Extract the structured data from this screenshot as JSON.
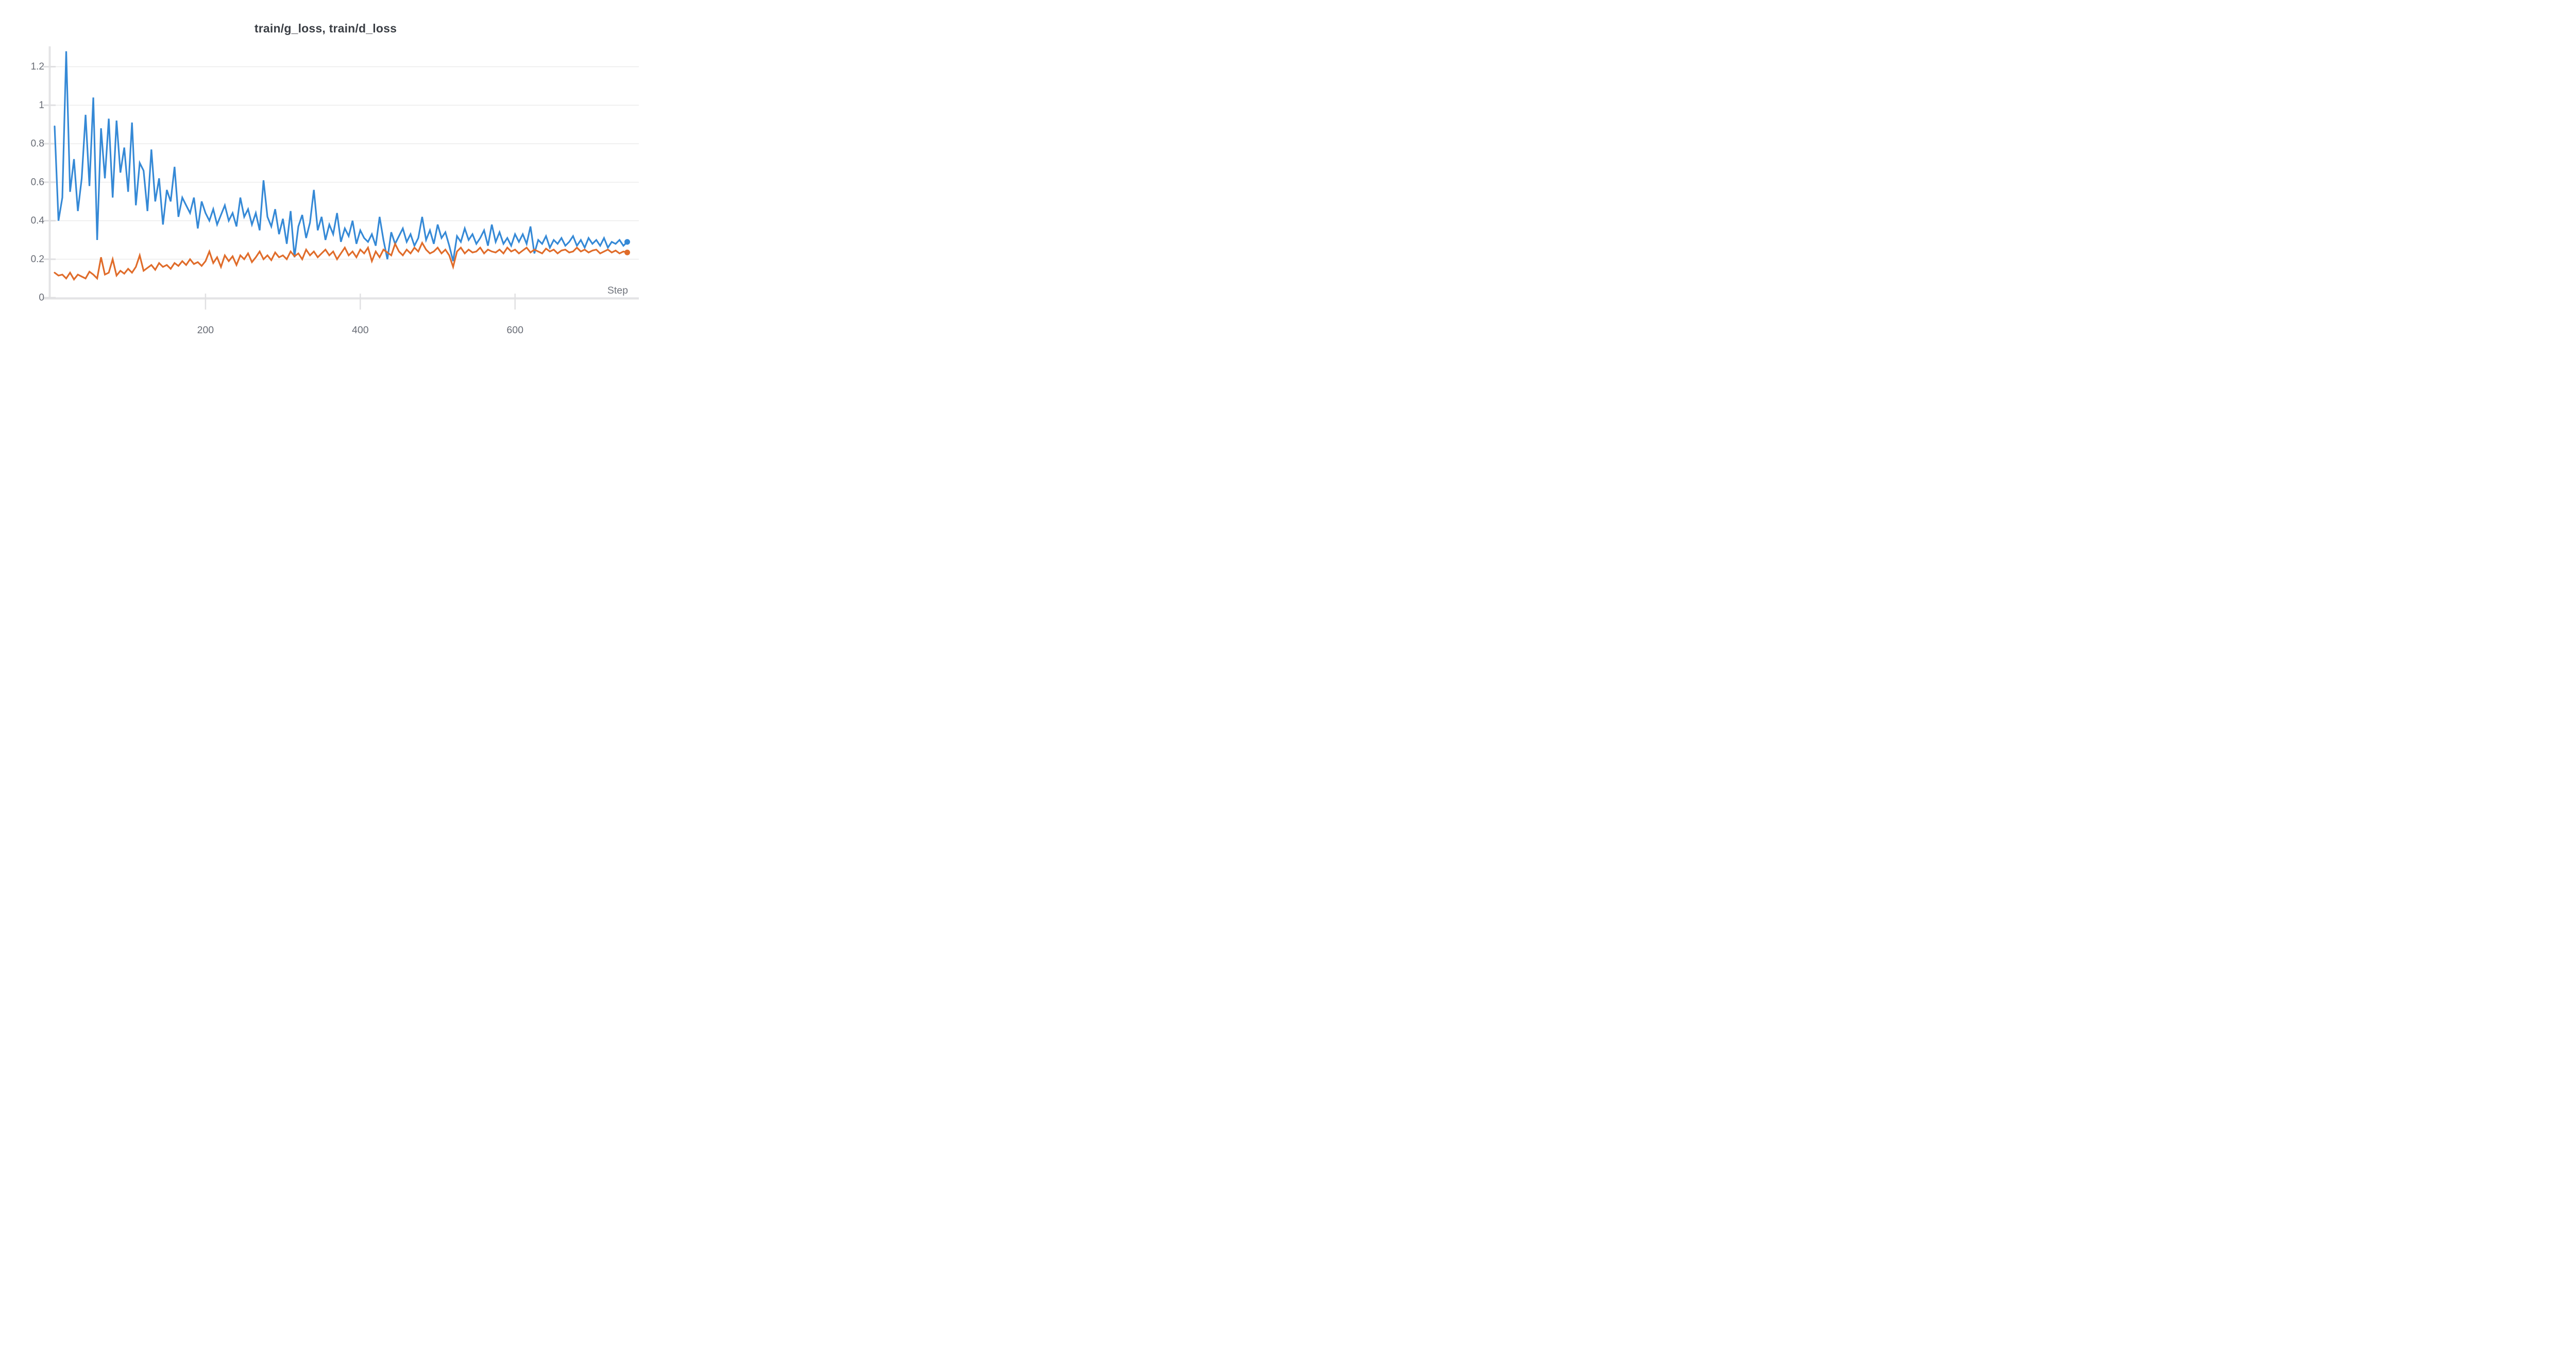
{
  "chart_data": {
    "type": "line",
    "title": "train/g_loss, train/d_loss",
    "xlabel": "Step",
    "ylabel": "",
    "xlim": [
      0,
      760
    ],
    "ylim": [
      0,
      1.3
    ],
    "grid": "horizontal",
    "legend": "none",
    "end_markers": true,
    "xticks": [
      {
        "value": 200,
        "label": "200"
      },
      {
        "value": 400,
        "label": "400"
      },
      {
        "value": 600,
        "label": "600"
      }
    ],
    "yticks": [
      {
        "value": 0,
        "label": "0"
      },
      {
        "value": 0.2,
        "label": "0.2"
      },
      {
        "value": 0.4,
        "label": "0.4"
      },
      {
        "value": 0.6,
        "label": "0.6"
      },
      {
        "value": 0.8,
        "label": "0.8"
      },
      {
        "value": 1,
        "label": "1"
      },
      {
        "value": 1.2,
        "label": "1.2"
      }
    ],
    "x": [
      5,
      10,
      15,
      20,
      25,
      30,
      35,
      40,
      45,
      50,
      55,
      60,
      65,
      70,
      75,
      80,
      85,
      90,
      95,
      100,
      105,
      110,
      115,
      120,
      125,
      130,
      135,
      140,
      145,
      150,
      155,
      160,
      165,
      170,
      175,
      180,
      185,
      190,
      195,
      200,
      205,
      210,
      215,
      220,
      225,
      230,
      235,
      240,
      245,
      250,
      255,
      260,
      265,
      270,
      275,
      280,
      285,
      290,
      295,
      300,
      305,
      310,
      315,
      320,
      325,
      330,
      335,
      340,
      345,
      350,
      355,
      360,
      365,
      370,
      375,
      380,
      385,
      390,
      395,
      400,
      405,
      410,
      415,
      420,
      425,
      430,
      435,
      440,
      445,
      450,
      455,
      460,
      465,
      470,
      475,
      480,
      485,
      490,
      495,
      500,
      505,
      510,
      515,
      520,
      525,
      530,
      535,
      540,
      545,
      550,
      555,
      560,
      565,
      570,
      575,
      580,
      585,
      590,
      595,
      600,
      605,
      610,
      615,
      620,
      625,
      630,
      635,
      640,
      645,
      650,
      655,
      660,
      665,
      670,
      675,
      680,
      685,
      690,
      695,
      700,
      705,
      710,
      715,
      720,
      725,
      730,
      735,
      740,
      745
    ],
    "series": [
      {
        "name": "train/g_loss",
        "color": "#3589d6",
        "values": [
          0.89,
          0.4,
          0.52,
          1.28,
          0.55,
          0.72,
          0.45,
          0.62,
          0.95,
          0.58,
          1.04,
          0.3,
          0.88,
          0.62,
          0.93,
          0.52,
          0.92,
          0.65,
          0.78,
          0.55,
          0.91,
          0.48,
          0.7,
          0.66,
          0.45,
          0.77,
          0.5,
          0.62,
          0.38,
          0.56,
          0.5,
          0.68,
          0.42,
          0.52,
          0.48,
          0.44,
          0.52,
          0.36,
          0.5,
          0.44,
          0.4,
          0.46,
          0.38,
          0.43,
          0.48,
          0.4,
          0.44,
          0.37,
          0.52,
          0.42,
          0.46,
          0.38,
          0.44,
          0.35,
          0.61,
          0.42,
          0.37,
          0.46,
          0.33,
          0.41,
          0.28,
          0.45,
          0.21,
          0.37,
          0.43,
          0.31,
          0.39,
          0.56,
          0.35,
          0.42,
          0.3,
          0.38,
          0.33,
          0.44,
          0.29,
          0.36,
          0.32,
          0.4,
          0.28,
          0.35,
          0.31,
          0.29,
          0.33,
          0.27,
          0.42,
          0.3,
          0.2,
          0.34,
          0.28,
          0.32,
          0.36,
          0.29,
          0.33,
          0.27,
          0.31,
          0.42,
          0.3,
          0.35,
          0.28,
          0.38,
          0.31,
          0.34,
          0.27,
          0.19,
          0.32,
          0.29,
          0.36,
          0.3,
          0.33,
          0.28,
          0.31,
          0.35,
          0.27,
          0.38,
          0.29,
          0.34,
          0.28,
          0.31,
          0.27,
          0.33,
          0.29,
          0.33,
          0.28,
          0.37,
          0.23,
          0.3,
          0.28,
          0.32,
          0.26,
          0.3,
          0.28,
          0.31,
          0.27,
          0.29,
          0.32,
          0.27,
          0.3,
          0.26,
          0.31,
          0.28,
          0.3,
          0.27,
          0.31,
          0.26,
          0.29,
          0.28,
          0.3,
          0.27,
          0.29
        ]
      },
      {
        "name": "train/d_loss",
        "color": "#e06c2a",
        "values": [
          0.13,
          0.115,
          0.12,
          0.1,
          0.13,
          0.095,
          0.12,
          0.11,
          0.1,
          0.135,
          0.12,
          0.1,
          0.21,
          0.12,
          0.13,
          0.2,
          0.115,
          0.14,
          0.125,
          0.15,
          0.13,
          0.16,
          0.22,
          0.14,
          0.155,
          0.17,
          0.145,
          0.18,
          0.16,
          0.17,
          0.15,
          0.18,
          0.165,
          0.19,
          0.17,
          0.2,
          0.175,
          0.185,
          0.165,
          0.19,
          0.24,
          0.18,
          0.21,
          0.16,
          0.22,
          0.19,
          0.215,
          0.17,
          0.22,
          0.2,
          0.23,
          0.185,
          0.21,
          0.24,
          0.2,
          0.22,
          0.195,
          0.235,
          0.21,
          0.22,
          0.2,
          0.24,
          0.215,
          0.23,
          0.2,
          0.25,
          0.22,
          0.24,
          0.21,
          0.23,
          0.25,
          0.22,
          0.24,
          0.2,
          0.23,
          0.26,
          0.22,
          0.24,
          0.21,
          0.25,
          0.23,
          0.26,
          0.19,
          0.24,
          0.21,
          0.25,
          0.235,
          0.22,
          0.28,
          0.24,
          0.22,
          0.25,
          0.23,
          0.26,
          0.24,
          0.285,
          0.25,
          0.23,
          0.24,
          0.26,
          0.23,
          0.25,
          0.22,
          0.16,
          0.24,
          0.26,
          0.23,
          0.25,
          0.235,
          0.24,
          0.26,
          0.23,
          0.25,
          0.24,
          0.235,
          0.25,
          0.23,
          0.26,
          0.24,
          0.25,
          0.23,
          0.245,
          0.26,
          0.235,
          0.25,
          0.24,
          0.23,
          0.255,
          0.24,
          0.25,
          0.23,
          0.245,
          0.25,
          0.235,
          0.24,
          0.26,
          0.24,
          0.25,
          0.235,
          0.245,
          0.25,
          0.23,
          0.24,
          0.25,
          0.235,
          0.245,
          0.23,
          0.24,
          0.235
        ]
      }
    ]
  },
  "style": {
    "background": "#ffffff",
    "title_color": "#3a3e44",
    "tick_label_color": "#686c75",
    "axis_label_color": "#71757d",
    "gridline_color": "#ececec",
    "axis_bar_color": "#e4e4e6",
    "tick_stub_color": "#e0e0e2"
  }
}
